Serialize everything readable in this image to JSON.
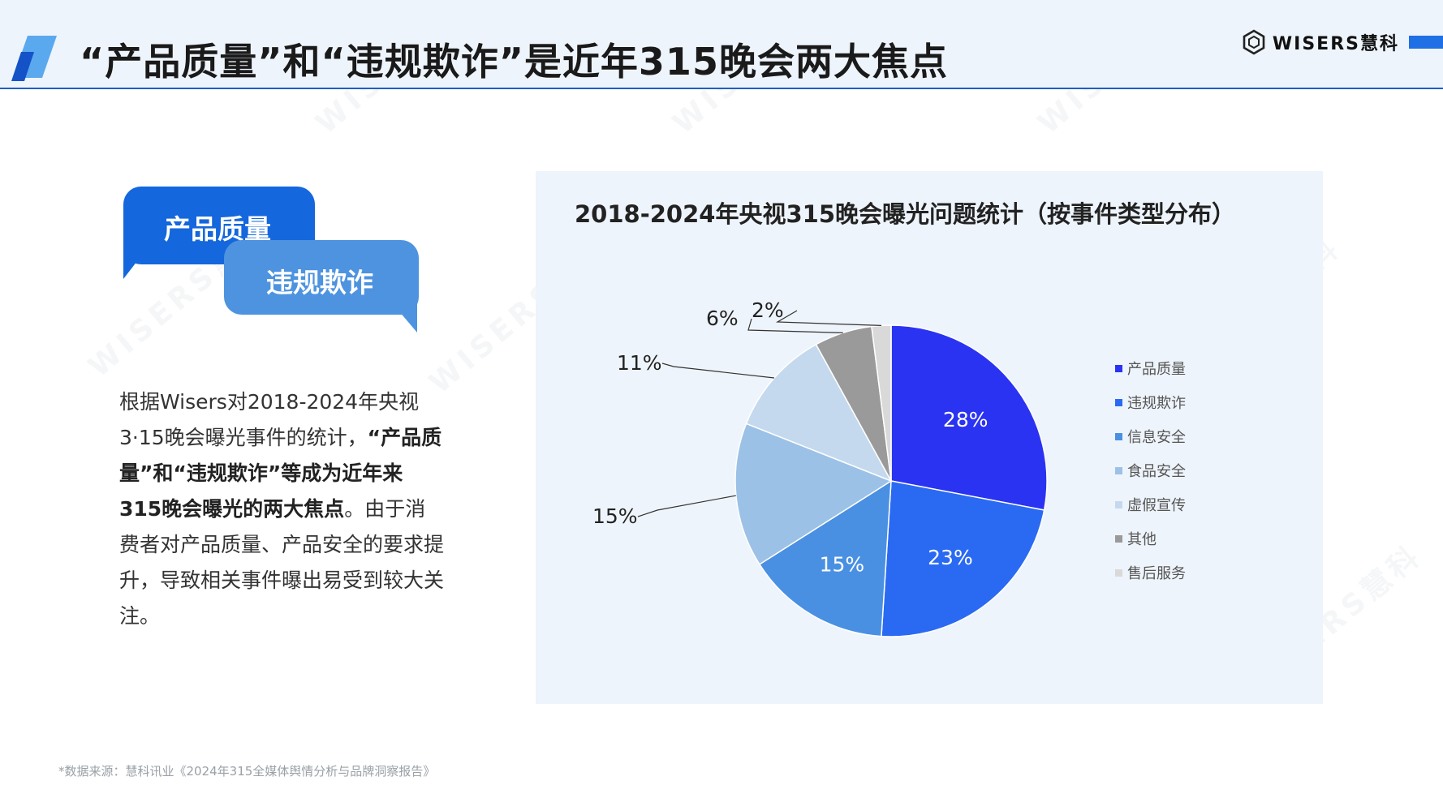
{
  "header": {
    "title": "“产品质量”和“违规欺诈”是近年315晚会两大焦点",
    "brand_name": "WISERS慧科",
    "accent_color": "#1f6fe5"
  },
  "bubbles": {
    "first_label": "产品质量",
    "second_label": "违规欺诈"
  },
  "description": {
    "part1": "根据Wisers对2018-2024年央视3·15晚会曝光事件的统计，",
    "bold": "“产品质量”和“违规欺诈”等成为近年来315晚会曝光的两大焦点",
    "part2": "。由于消费者对产品质量、产品安全的要求提升，导致相关事件曝出易受到较大关注。"
  },
  "source": "*数据来源：慧科讯业《2024年315全媒体舆情分析与品牌洞察报告》",
  "watermark_text": "WISERS慧科",
  "chart_data": {
    "type": "pie",
    "title": "2018-2024年央视315晚会曝光问题统计（按事件类型分布）",
    "legend_position": "right",
    "slices": [
      {
        "name": "产品质量",
        "value": 28,
        "label": "28%",
        "color": "#2b33f2"
      },
      {
        "name": "违规欺诈",
        "value": 23,
        "label": "23%",
        "color": "#2a6af3"
      },
      {
        "name": "信息安全",
        "value": 15,
        "label": "15%",
        "color": "#4a90e2"
      },
      {
        "name": "食品安全",
        "value": 15,
        "label": "15%",
        "color": "#9cc1e6"
      },
      {
        "name": "虚假宣传",
        "value": 11,
        "label": "11%",
        "color": "#c4d9ee"
      },
      {
        "name": "其他",
        "value": 6,
        "label": "6%",
        "color": "#9a9a9a"
      },
      {
        "name": "售后服务",
        "value": 2,
        "label": "2%",
        "color": "#d9d9d9"
      }
    ]
  }
}
